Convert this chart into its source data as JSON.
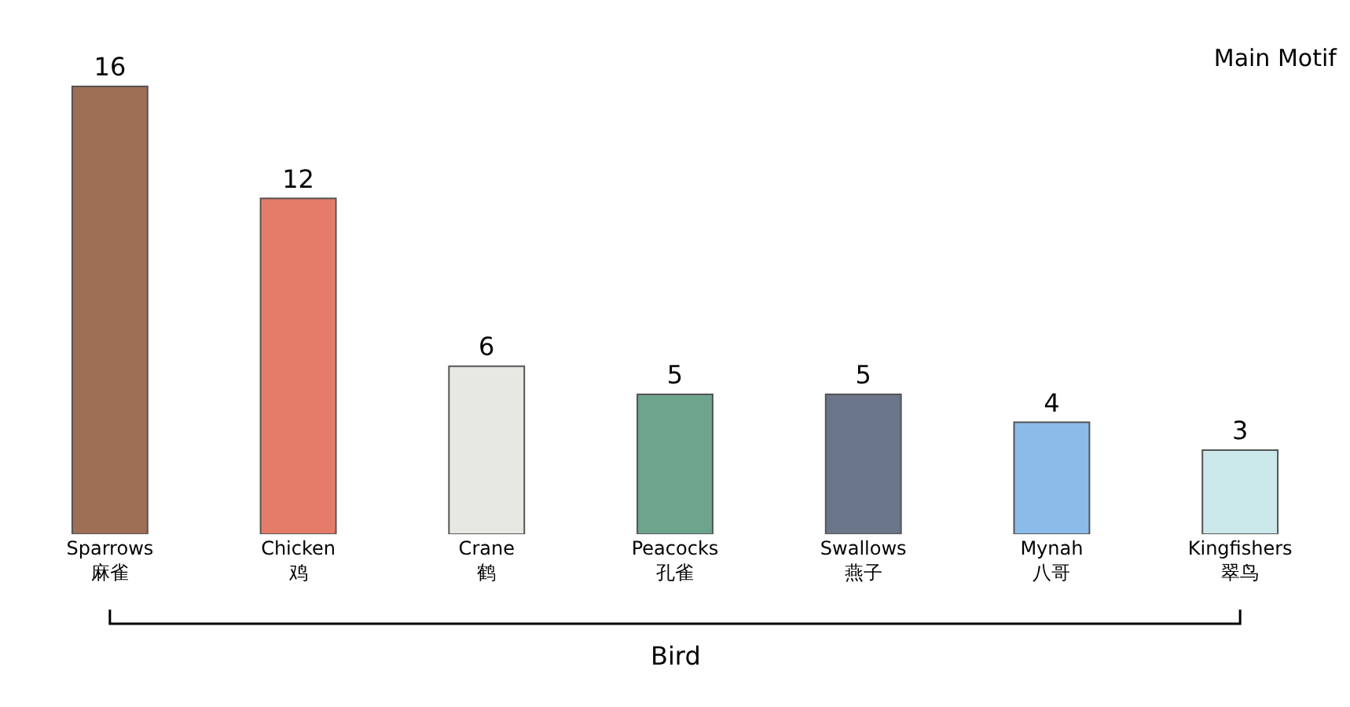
{
  "chart_data": {
    "type": "bar",
    "title": "Main Motif",
    "xlabel": "Bird",
    "categories": [
      "Sparrows\n麻雀",
      "Chicken\n鸡",
      "Crane\n鹤",
      "Peacocks\n孔雀",
      "Swallows\n燕子",
      "Mynah\n八哥",
      "Kingfishers\n翠鸟"
    ],
    "values": [
      16,
      12,
      6,
      5,
      5,
      4,
      3
    ],
    "colors": [
      "#9e6e55",
      "#e57c6a",
      "#e8e8e2",
      "#6ea48e",
      "#6c768a",
      "#8cbbe9",
      "#cbe8ea"
    ],
    "data_labels": true
  }
}
